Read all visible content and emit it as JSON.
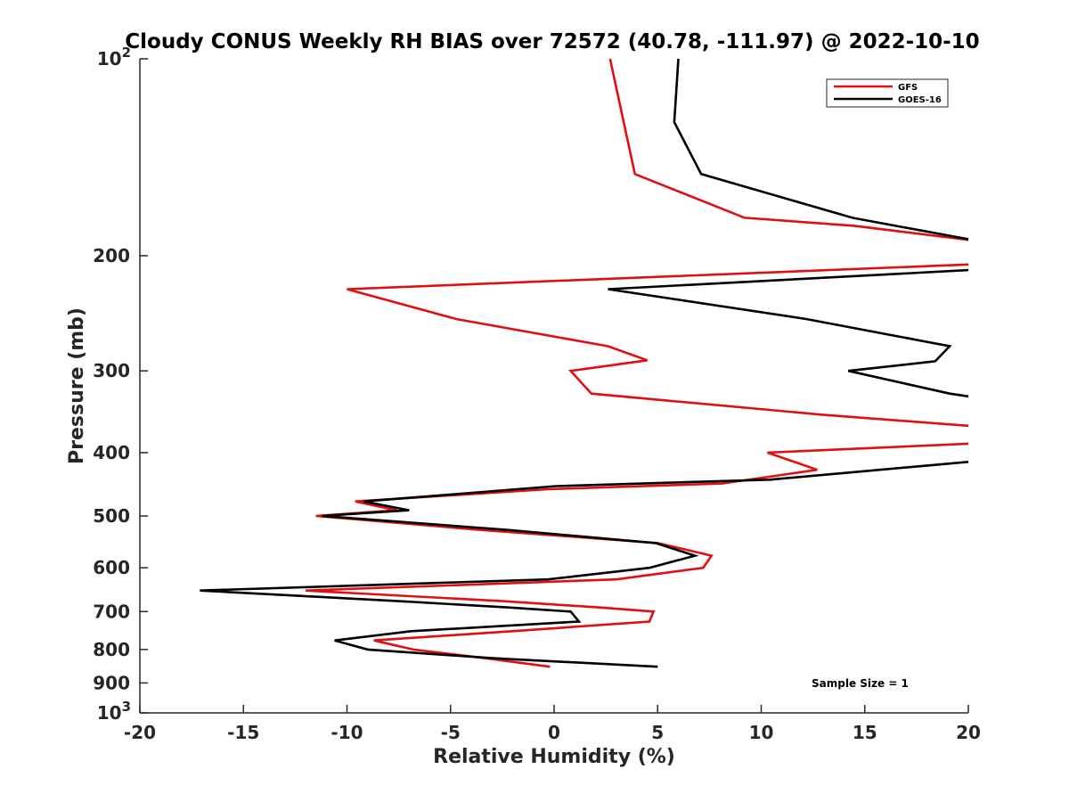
{
  "chart_data": {
    "type": "line",
    "title": "Cloudy CONUS Weekly RH BIAS over 72572 (40.78, -111.97) @ 2022-10-10",
    "xlabel": "Relative Humidity (%)",
    "ylabel": "Pressure (mb)",
    "xlim": [
      -20,
      20
    ],
    "ylim": [
      100,
      1000
    ],
    "y_scale": "log",
    "y_reversed": true,
    "grid": false,
    "legend_position": "top-right",
    "annotation": "Sample Size = 1",
    "x_ticks": [
      {
        "value": -20,
        "label": "-20"
      },
      {
        "value": -15,
        "label": "-15"
      },
      {
        "value": -10,
        "label": "-10"
      },
      {
        "value": -5,
        "label": "-5"
      },
      {
        "value": 0,
        "label": "0"
      },
      {
        "value": 5,
        "label": "5"
      },
      {
        "value": 10,
        "label": "10"
      },
      {
        "value": 15,
        "label": "15"
      },
      {
        "value": 20,
        "label": "20"
      }
    ],
    "y_ticks": [
      {
        "value": 100,
        "base": "10",
        "exp": "2"
      },
      {
        "value": 200,
        "base": "200",
        "exp": ""
      },
      {
        "value": 300,
        "base": "300",
        "exp": ""
      },
      {
        "value": 400,
        "base": "400",
        "exp": ""
      },
      {
        "value": 500,
        "base": "500",
        "exp": ""
      },
      {
        "value": 600,
        "base": "600",
        "exp": ""
      },
      {
        "value": 700,
        "base": "700",
        "exp": ""
      },
      {
        "value": 800,
        "base": "800",
        "exp": ""
      },
      {
        "value": 900,
        "base": "900",
        "exp": ""
      },
      {
        "value": 1000,
        "base": "10",
        "exp": "3"
      }
    ],
    "series": [
      {
        "name": "GFS",
        "color": "#e01010",
        "points": [
          {
            "x": 2.7,
            "p": 100
          },
          {
            "x": 3.9,
            "p": 150
          },
          {
            "x": 9.2,
            "p": 175
          },
          {
            "x": 14.5,
            "p": 180
          },
          {
            "x": 20.5,
            "p": 190
          },
          {
            "x": 20.5,
            "p": 206
          },
          {
            "x": -10.0,
            "p": 225
          },
          {
            "x": -4.7,
            "p": 250
          },
          {
            "x": 2.6,
            "p": 275
          },
          {
            "x": 4.5,
            "p": 289
          },
          {
            "x": 0.8,
            "p": 300
          },
          {
            "x": 1.8,
            "p": 325
          },
          {
            "x": 12.9,
            "p": 350
          },
          {
            "x": 20.5,
            "p": 365
          },
          {
            "x": 20.5,
            "p": 387
          },
          {
            "x": 10.3,
            "p": 400
          },
          {
            "x": 12.7,
            "p": 425
          },
          {
            "x": 8.1,
            "p": 446
          },
          {
            "x": -0.3,
            "p": 455
          },
          {
            "x": -9.6,
            "p": 475
          },
          {
            "x": -7.6,
            "p": 490
          },
          {
            "x": -11.5,
            "p": 500
          },
          {
            "x": -3.6,
            "p": 525
          },
          {
            "x": 5.0,
            "p": 550
          },
          {
            "x": 7.6,
            "p": 575
          },
          {
            "x": 7.2,
            "p": 600
          },
          {
            "x": 3.0,
            "p": 625
          },
          {
            "x": -12.0,
            "p": 650
          },
          {
            "x": -2.4,
            "p": 675
          },
          {
            "x": 2.2,
            "p": 690
          },
          {
            "x": 4.8,
            "p": 700
          },
          {
            "x": 4.6,
            "p": 725
          },
          {
            "x": -2.0,
            "p": 750
          },
          {
            "x": -8.7,
            "p": 775
          },
          {
            "x": -6.8,
            "p": 800
          },
          {
            "x": -3.3,
            "p": 825
          },
          {
            "x": -0.2,
            "p": 850
          }
        ]
      },
      {
        "name": "GOES-16",
        "color": "#000000",
        "points": [
          {
            "x": 6.0,
            "p": 100
          },
          {
            "x": 5.8,
            "p": 125
          },
          {
            "x": 7.1,
            "p": 150
          },
          {
            "x": 14.4,
            "p": 175
          },
          {
            "x": 20.5,
            "p": 190
          },
          {
            "x": 20.5,
            "p": 210
          },
          {
            "x": 2.6,
            "p": 225
          },
          {
            "x": 12.2,
            "p": 250
          },
          {
            "x": 19.1,
            "p": 275
          },
          {
            "x": 18.4,
            "p": 290
          },
          {
            "x": 14.2,
            "p": 300
          },
          {
            "x": 19.1,
            "p": 325
          },
          {
            "x": 20.5,
            "p": 330
          },
          {
            "x": 20.5,
            "p": 412
          },
          {
            "x": 10.4,
            "p": 440
          },
          {
            "x": 0.1,
            "p": 450
          },
          {
            "x": -9.2,
            "p": 475
          },
          {
            "x": -7.0,
            "p": 490
          },
          {
            "x": -11.2,
            "p": 500
          },
          {
            "x": -2.3,
            "p": 525
          },
          {
            "x": 4.9,
            "p": 550
          },
          {
            "x": 6.8,
            "p": 575
          },
          {
            "x": 4.6,
            "p": 600
          },
          {
            "x": -0.3,
            "p": 625
          },
          {
            "x": -17.1,
            "p": 650
          },
          {
            "x": -7.4,
            "p": 675
          },
          {
            "x": -2.2,
            "p": 690
          },
          {
            "x": 0.8,
            "p": 700
          },
          {
            "x": 1.2,
            "p": 725
          },
          {
            "x": -6.9,
            "p": 750
          },
          {
            "x": -10.6,
            "p": 775
          },
          {
            "x": -9.0,
            "p": 800
          },
          {
            "x": -2.9,
            "p": 825
          },
          {
            "x": 5.0,
            "p": 850
          }
        ]
      }
    ]
  }
}
